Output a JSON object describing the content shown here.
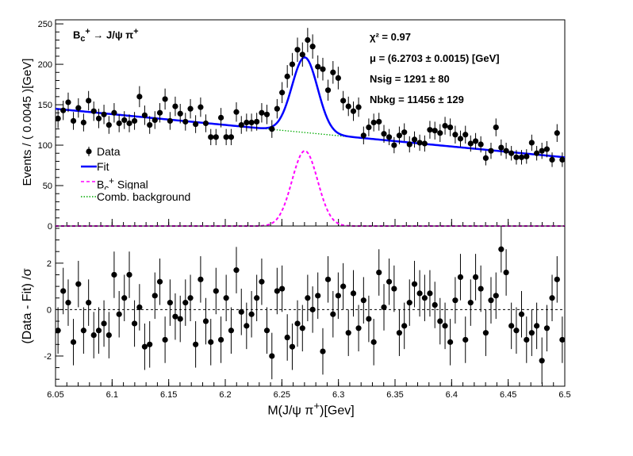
{
  "chart_data": [
    {
      "type": "scatter",
      "panel": "top",
      "ylabel": "Events / ( 0.0045 )[GeV]",
      "xlim": [
        6.05,
        6.5
      ],
      "ylim": [
        0,
        255
      ],
      "yticks": [
        0,
        50,
        100,
        150,
        200,
        250
      ],
      "annotations": {
        "channel": "B<sub>c</sub><sup>+</sup> → J/ψ π<sup>+</sup>",
        "chi2": "χ² = 0.97",
        "mu": "μ = (6.2703 ± 0.0015) [GeV]",
        "nsig": "Nsig = 1291 ± 80",
        "nbkg": "Nbkg = 11456 ± 129"
      },
      "legend": {
        "placement": "left-middle",
        "entries": [
          {
            "label": "Data",
            "style": "marker",
            "color": "#000000"
          },
          {
            "label": "Fit",
            "style": "solid",
            "color": "#0000ff"
          },
          {
            "label": "B<sub>c</sub><sup>+</sup> Signal",
            "style": "dashed",
            "color": "#ff00ff"
          },
          {
            "label": "Comb. background",
            "style": "dotted",
            "color": "#00aa00"
          }
        ]
      },
      "series": [
        {
          "name": "Data",
          "x": [
            6.0522,
            6.0568,
            6.0612,
            6.0658,
            6.0702,
            6.0748,
            6.0792,
            6.0838,
            6.0882,
            6.0928,
            6.0972,
            6.1018,
            6.1062,
            6.1108,
            6.1152,
            6.1198,
            6.1242,
            6.1288,
            6.1332,
            6.1378,
            6.1422,
            6.1468,
            6.1512,
            6.1558,
            6.1602,
            6.1648,
            6.1692,
            6.1738,
            6.1782,
            6.1828,
            6.1872,
            6.1918,
            6.1962,
            6.2008,
            6.2052,
            6.2098,
            6.2142,
            6.2188,
            6.2232,
            6.2278,
            6.2322,
            6.2368,
            6.2412,
            6.2458,
            6.2502,
            6.2548,
            6.2592,
            6.2638,
            6.2682,
            6.2728,
            6.2772,
            6.2818,
            6.2862,
            6.2908,
            6.2952,
            6.2998,
            6.3042,
            6.3088,
            6.3132,
            6.3178,
            6.3222,
            6.3268,
            6.3312,
            6.3358,
            6.3402,
            6.3448,
            6.3492,
            6.3538,
            6.3582,
            6.3628,
            6.3672,
            6.3718,
            6.3762,
            6.3808,
            6.3852,
            6.3898,
            6.3942,
            6.3988,
            6.4032,
            6.4078,
            6.4122,
            6.4168,
            6.4212,
            6.4258,
            6.4302,
            6.4348,
            6.4392,
            6.4438,
            6.4482,
            6.4528,
            6.4572,
            6.4618,
            6.4662,
            6.4708,
            6.4752,
            6.4798,
            6.4842,
            6.4888,
            6.4932,
            6.4978
          ],
          "y": [
            133,
            143,
            153,
            130,
            146,
            128,
            155,
            142,
            133,
            138,
            125,
            140,
            127,
            131,
            127,
            130,
            160,
            137,
            125,
            131,
            140,
            157,
            130,
            148,
            139,
            129,
            145,
            126,
            147,
            127,
            110,
            110,
            134,
            110,
            110,
            141,
            125,
            128,
            128,
            129,
            140,
            138,
            120,
            145,
            165,
            185,
            200,
            218,
            212,
            230,
            222,
            197,
            194,
            168,
            190,
            183,
            155,
            148,
            142,
            147,
            112,
            122,
            128,
            129,
            114,
            110,
            100,
            112,
            116,
            101,
            107,
            103,
            102,
            119,
            118,
            115,
            124,
            122,
            113,
            108,
            113,
            102,
            105,
            101,
            84,
            93,
            122,
            97,
            93,
            90,
            85,
            85,
            86,
            103,
            90,
            93,
            95,
            82,
            115,
            82
          ],
          "yerr": [
            12,
            12,
            12,
            11,
            12,
            11,
            12,
            12,
            12,
            12,
            11,
            12,
            11,
            11,
            11,
            11,
            13,
            12,
            11,
            11,
            12,
            13,
            11,
            12,
            12,
            11,
            12,
            11,
            12,
            11,
            10,
            10,
            12,
            10,
            10,
            12,
            11,
            11,
            11,
            11,
            12,
            12,
            11,
            12,
            13,
            14,
            14,
            15,
            15,
            15,
            15,
            14,
            14,
            13,
            14,
            14,
            12,
            12,
            12,
            12,
            11,
            11,
            11,
            11,
            11,
            10,
            10,
            11,
            11,
            10,
            10,
            10,
            10,
            11,
            11,
            11,
            11,
            11,
            11,
            10,
            11,
            10,
            10,
            10,
            9,
            10,
            11,
            10,
            10,
            9,
            9,
            9,
            9,
            10,
            9,
            10,
            10,
            9,
            11,
            9
          ]
        },
        {
          "name": "Fit",
          "model": {
            "mu": 6.2703,
            "sigma": 0.0113,
            "sig_amp": 93,
            "bkg_a": 145,
            "bkg_b": 85
          }
        },
        {
          "name": "B<sub>c</sub><sup>+</sup> Signal",
          "model": {
            "mu": 6.2703,
            "sigma": 0.0113,
            "sig_amp": 93
          }
        },
        {
          "name": "Comb. background",
          "model": {
            "bkg_a": 145,
            "bkg_b": 85
          }
        }
      ]
    },
    {
      "type": "scatter",
      "panel": "bottom",
      "xlabel": "M(J/ψ π<sup>+</sup>)[Gev]",
      "ylabel": "(Data - Fit) /σ",
      "xlim": [
        6.05,
        6.5
      ],
      "ylim": [
        -3.3,
        3.6
      ],
      "xticks": [
        6.05,
        6.1,
        6.15,
        6.2,
        6.25,
        6.3,
        6.35,
        6.4,
        6.45,
        6.5
      ],
      "xticklabels": [
        "6.05",
        "6.1",
        "6.15",
        "6.2",
        "6.25",
        "6.3",
        "6.35",
        "6.4",
        "6.45",
        "6.5"
      ],
      "yticks": [
        -2,
        0,
        2
      ],
      "reference_line": 0,
      "series": [
        {
          "name": "Pull",
          "x": [
            6.0522,
            6.0568,
            6.0612,
            6.0658,
            6.0702,
            6.0748,
            6.0792,
            6.0838,
            6.0882,
            6.0928,
            6.0972,
            6.1018,
            6.1062,
            6.1108,
            6.1152,
            6.1198,
            6.1242,
            6.1288,
            6.1332,
            6.1378,
            6.1422,
            6.1468,
            6.1512,
            6.1558,
            6.1602,
            6.1648,
            6.1692,
            6.1738,
            6.1782,
            6.1828,
            6.1872,
            6.1918,
            6.1962,
            6.2008,
            6.2052,
            6.2098,
            6.2142,
            6.2188,
            6.2232,
            6.2278,
            6.2322,
            6.2368,
            6.2412,
            6.2458,
            6.2502,
            6.2548,
            6.2592,
            6.2638,
            6.2682,
            6.2728,
            6.2772,
            6.2818,
            6.2862,
            6.2908,
            6.2952,
            6.2998,
            6.3042,
            6.3088,
            6.3132,
            6.3178,
            6.3222,
            6.3268,
            6.3312,
            6.3358,
            6.3402,
            6.3448,
            6.3492,
            6.3538,
            6.3582,
            6.3628,
            6.3672,
            6.3718,
            6.3762,
            6.3808,
            6.3852,
            6.3898,
            6.3942,
            6.3988,
            6.4032,
            6.4078,
            6.4122,
            6.4168,
            6.4212,
            6.4258,
            6.4302,
            6.4348,
            6.4392,
            6.4438,
            6.4482,
            6.4528,
            6.4572,
            6.4618,
            6.4662,
            6.4708,
            6.4752,
            6.4798,
            6.4842,
            6.4888,
            6.4932,
            6.4978
          ],
          "y": [
            -0.9,
            0.8,
            0.3,
            -1.4,
            1.1,
            -0.9,
            0.3,
            -1.1,
            -0.9,
            -0.6,
            -1.1,
            1.5,
            -0.2,
            0.5,
            1.5,
            -0.6,
            0.1,
            -1.6,
            -1.5,
            0.6,
            1.2,
            -1.3,
            0.3,
            -0.3,
            -0.4,
            0.3,
            0.5,
            -1.5,
            1.3,
            -0.5,
            -1.4,
            0.8,
            -1.3,
            0.5,
            -0.9,
            1.7,
            -0.1,
            -0.7,
            -0.2,
            0.5,
            1.2,
            -0.9,
            -2.0,
            0.8,
            0.9,
            -1.2,
            -1.6,
            -0.6,
            -0.8,
            0.5,
            0.0,
            0.6,
            -1.8,
            1.3,
            -0.2,
            0.6,
            1.0,
            -1.0,
            0.7,
            -0.8,
            0.4,
            -0.4,
            -1.4,
            1.6,
            0.1,
            1.2,
            0.9,
            -1.0,
            -0.7,
            0.3,
            1.1,
            0.7,
            0.5,
            0.7,
            0.2,
            -0.5,
            -0.7,
            -1.4,
            0.4,
            1.4,
            -1.3,
            0.3,
            1.4,
            0.9,
            -1.0,
            0.4,
            0.6,
            2.6,
            1.6,
            -0.7,
            -0.9,
            -0.2,
            -1.3,
            -1.0,
            -0.7,
            -2.2,
            -0.8,
            0.5,
            1.3,
            -1.3
          ],
          "yerr": 1
        }
      ]
    }
  ]
}
